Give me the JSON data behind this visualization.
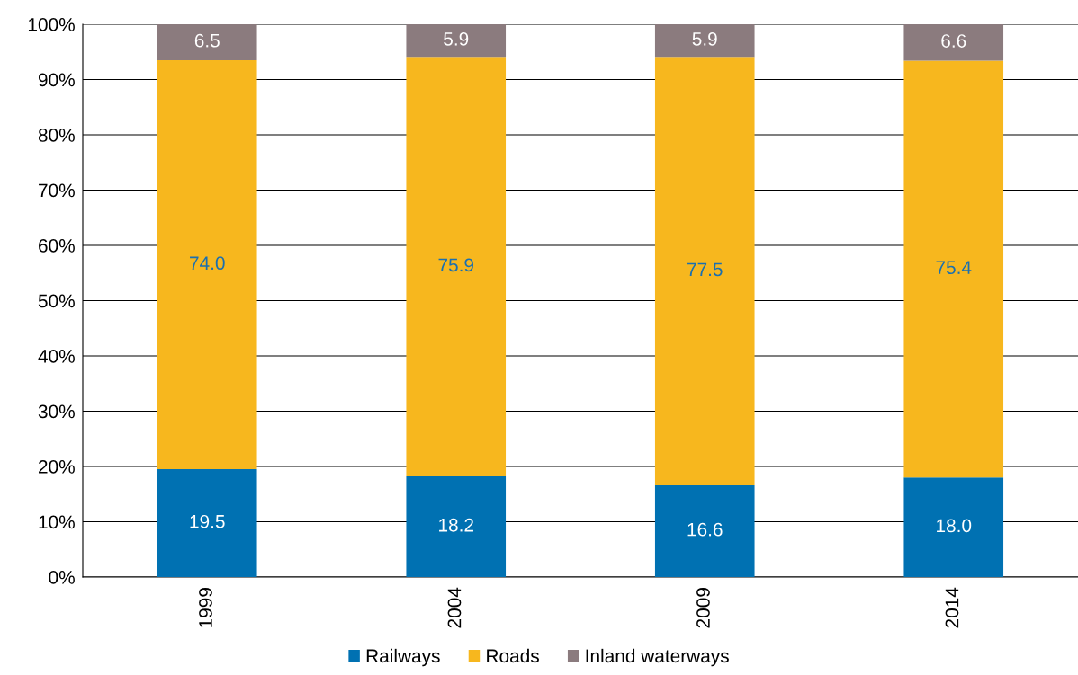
{
  "chart_data": {
    "type": "bar",
    "stacked": true,
    "categories": [
      "1999",
      "2004",
      "2009",
      "2014"
    ],
    "series": [
      {
        "name": "Railways",
        "color": "#0071b2",
        "values": [
          19.5,
          18.2,
          16.6,
          18.0
        ],
        "value_labels": [
          "19.5",
          "18.2",
          "16.6",
          "18.0"
        ]
      },
      {
        "name": "Roads",
        "color": "#f7b71e",
        "values": [
          74.0,
          75.9,
          77.5,
          75.4
        ],
        "value_labels": [
          "74.0",
          "75.9",
          "77.5",
          "75.4"
        ]
      },
      {
        "name": "Inland waterways",
        "color": "#8b7b7e",
        "values": [
          6.5,
          5.9,
          5.9,
          6.6
        ],
        "value_labels": [
          "6.5",
          "5.9",
          "5.9",
          "6.6"
        ]
      }
    ],
    "ylim": [
      0,
      100
    ],
    "yticks": [
      {
        "value": 0,
        "label": "0%"
      },
      {
        "value": 10,
        "label": "10%"
      },
      {
        "value": 20,
        "label": "20%"
      },
      {
        "value": 30,
        "label": "30%"
      },
      {
        "value": 40,
        "label": "40%"
      },
      {
        "value": 50,
        "label": "50%"
      },
      {
        "value": 60,
        "label": "60%"
      },
      {
        "value": 70,
        "label": "70%"
      },
      {
        "value": 80,
        "label": "80%"
      },
      {
        "value": 90,
        "label": "90%"
      },
      {
        "value": 100,
        "label": "100%"
      }
    ],
    "grid": "y",
    "legend": "bottom"
  }
}
